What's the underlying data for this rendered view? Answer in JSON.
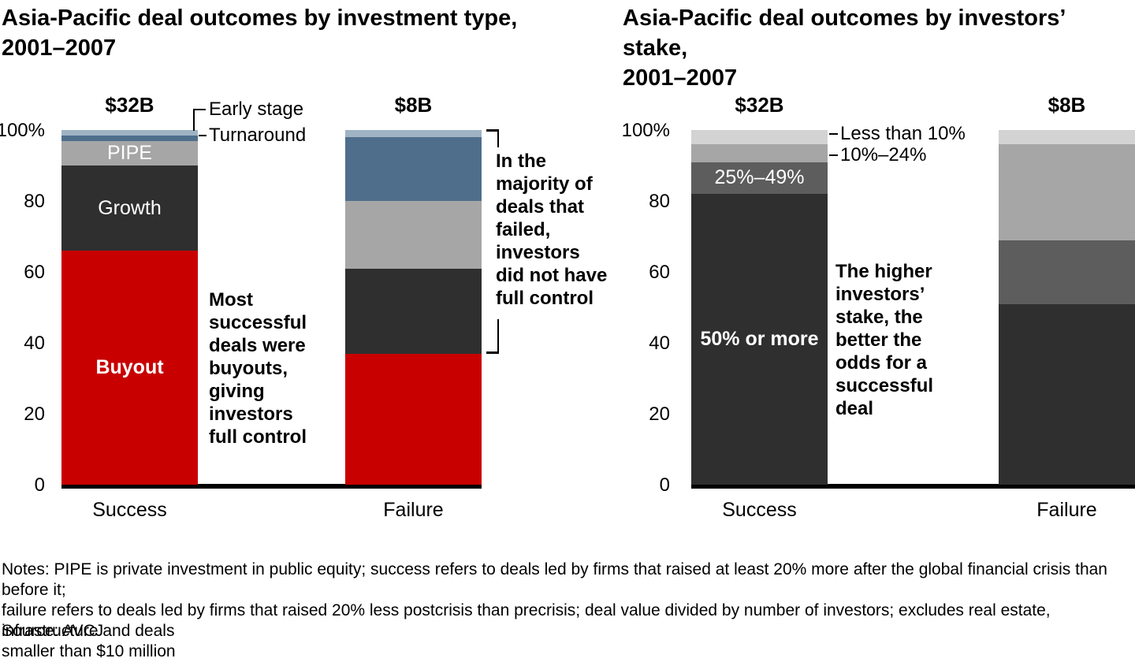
{
  "chart_data": [
    {
      "type": "bar",
      "stacked": true,
      "title": "Asia-Pacific deal outcomes by investment type,\n2001–2007",
      "xlabel": "",
      "ylabel": "",
      "ylim": [
        0,
        100
      ],
      "grid": false,
      "legend_position": "in-bar and leader labels",
      "y_ticks": [
        {
          "label": "100%",
          "value": 100
        },
        {
          "label": "80",
          "value": 80
        },
        {
          "label": "60",
          "value": 60
        },
        {
          "label": "40",
          "value": 40
        },
        {
          "label": "20",
          "value": 20
        },
        {
          "label": "0",
          "value": 0
        }
      ],
      "categories": [
        "Success",
        "Failure"
      ],
      "bar_totals": [
        "$32B",
        "$8B"
      ],
      "series": [
        {
          "name": "Buyout",
          "color": "#c80000",
          "values": [
            66,
            37
          ],
          "label_bar": 0,
          "label_bold": true
        },
        {
          "name": "Growth",
          "color": "#2f2f2f",
          "values": [
            24,
            24
          ],
          "label_bar": 0,
          "label_bold": false
        },
        {
          "name": "PIPE",
          "color": "#a6a6a6",
          "values": [
            7,
            19
          ],
          "label_bar": 0,
          "label_bold": false
        },
        {
          "name": "Turnaround",
          "color": "#4f6e8c",
          "values": [
            1.5,
            18
          ],
          "callout": true
        },
        {
          "name": "Early stage",
          "color": "#9fb3c4",
          "values": [
            1.5,
            2
          ],
          "callout": true
        }
      ],
      "annotations": [
        {
          "text": "Most\nsuccessful\ndeals were\nbuyouts,\ngiving\ninvestors\nfull control"
        },
        {
          "text": "In the\nmajority of\ndeals that\nfailed,\ninvestors\ndid not have\nfull control"
        }
      ]
    },
    {
      "type": "bar",
      "stacked": true,
      "title": "Asia-Pacific deal outcomes by investors’ stake,\n2001–2007",
      "xlabel": "",
      "ylabel": "",
      "ylim": [
        0,
        100
      ],
      "grid": false,
      "legend_position": "in-bar and leader labels",
      "y_ticks": [
        {
          "label": "100%",
          "value": 100
        },
        {
          "label": "80",
          "value": 80
        },
        {
          "label": "60",
          "value": 60
        },
        {
          "label": "40",
          "value": 40
        },
        {
          "label": "20",
          "value": 20
        },
        {
          "label": "0",
          "value": 0
        }
      ],
      "categories": [
        "Success",
        "Failure"
      ],
      "bar_totals": [
        "$32B",
        "$8B"
      ],
      "series": [
        {
          "name": "50% or more",
          "color": "#2f2f2f",
          "values": [
            82,
            51
          ],
          "label_bar": 0,
          "label_bold": true
        },
        {
          "name": "25%–49%",
          "color": "#5d5d5d",
          "values": [
            9,
            18
          ],
          "label_bar": 0,
          "label_bold": false
        },
        {
          "name": "10%–24%",
          "color": "#a6a6a6",
          "values": [
            5,
            27
          ],
          "callout": true
        },
        {
          "name": "Less than 10%",
          "color": "#d3d3d3",
          "values": [
            4,
            4
          ],
          "callout": true
        }
      ],
      "annotations": [
        {
          "text": "The higher\ninvestors’\nstake, the\nbetter the\nodds for a\nsuccessful\ndeal"
        }
      ]
    }
  ],
  "notes": "Notes: PIPE is private investment in public equity; success refers to deals led by firms that raised at least 20% more after the global financial crisis than before it;\nfailure refers to deals led by firms that raised 20% less postcrisis than precrisis; deal value divided by number of investors; excludes real estate, infrastructure and deals\nsmaller than $10 million",
  "source": "Source: AVCJ"
}
